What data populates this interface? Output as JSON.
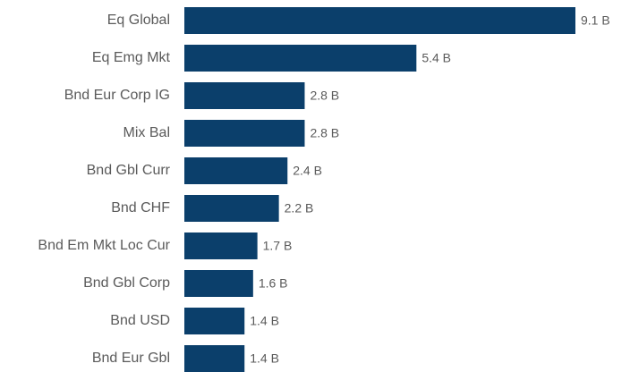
{
  "chart_data": {
    "type": "bar",
    "orientation": "horizontal",
    "categories": [
      "Eq Global",
      "Eq Emg Mkt",
      "Bnd Eur Corp IG",
      "Mix Bal",
      "Bnd Gbl Curr",
      "Bnd CHF",
      "Bnd Em Mkt Loc Cur",
      "Bnd Gbl Corp",
      "Bnd USD",
      "Bnd Eur Gbl"
    ],
    "values": [
      9.1,
      5.4,
      2.8,
      2.8,
      2.4,
      2.2,
      1.7,
      1.6,
      1.4,
      1.4
    ],
    "value_labels": [
      "9.1 B",
      "5.4 B",
      "2.8 B",
      "2.8 B",
      "2.4 B",
      "2.2 B",
      "1.7 B",
      "1.6 B",
      "1.4 B",
      "1.4 B"
    ],
    "title": "",
    "xlabel": "",
    "ylabel": "",
    "xlim": [
      0,
      9.1
    ],
    "grid": false,
    "legend": "none",
    "bar_color": "#0b3f6b",
    "text_color": "#5a5a5a"
  }
}
